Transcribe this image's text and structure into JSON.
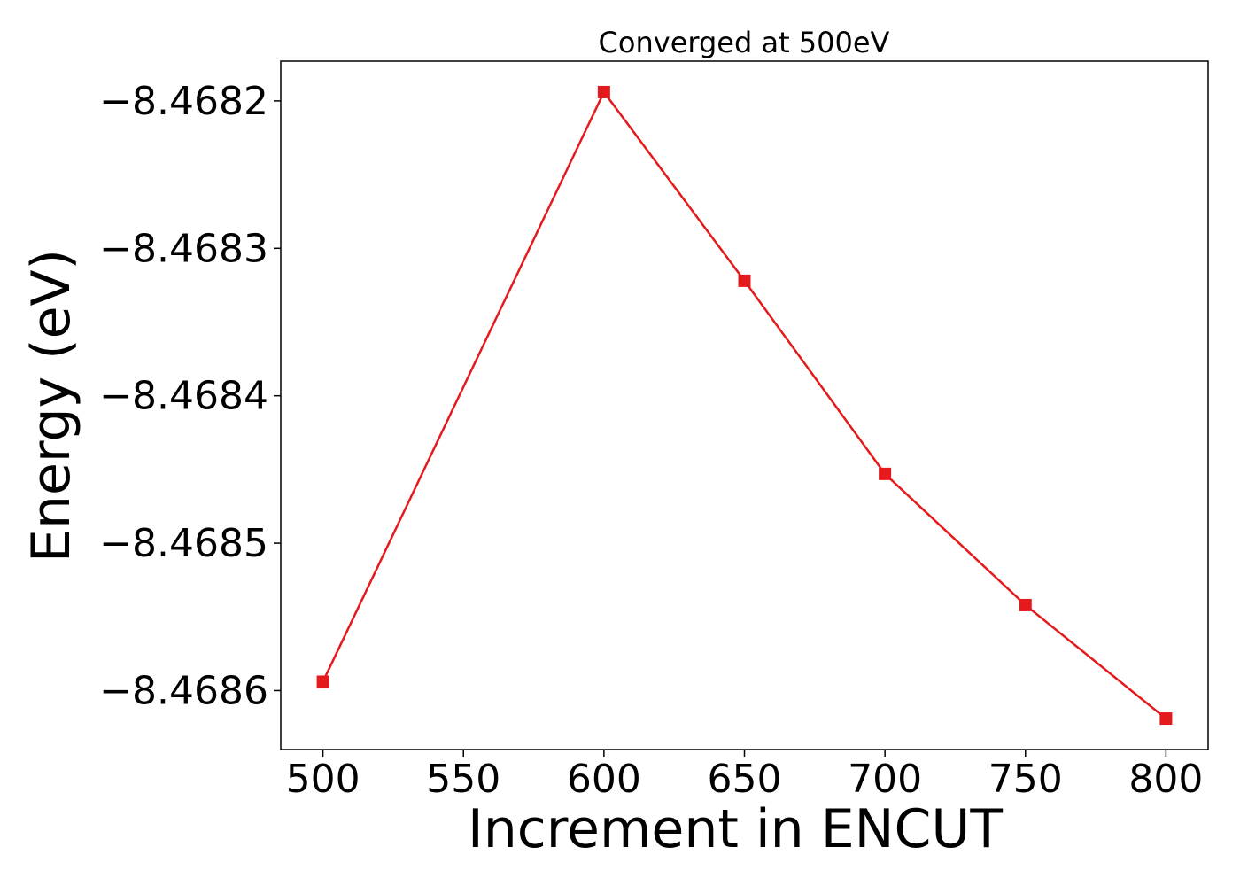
{
  "chart_data": {
    "type": "line",
    "title": "Converged at 500eV",
    "xlabel": "Increment in ENCUT",
    "ylabel": "Energy (eV)",
    "x": [
      500,
      600,
      650,
      700,
      750,
      800
    ],
    "series": [
      {
        "values": [
          -8.468594,
          -8.468194,
          -8.468322,
          -8.468453,
          -8.468542,
          -8.468619
        ],
        "color": "#e41a1c",
        "marker": "square"
      }
    ],
    "xticks": [
      500,
      550,
      600,
      650,
      700,
      750,
      800
    ],
    "xtick_labels": [
      "500",
      "550",
      "600",
      "650",
      "700",
      "750",
      "800"
    ],
    "yticks": [
      -8.4682,
      -8.4683,
      -8.4684,
      -8.4685,
      -8.4686
    ],
    "ytick_labels": [
      "−8.4682",
      "−8.4683",
      "−8.4684",
      "−8.4685",
      "−8.4686"
    ],
    "xlim": [
      485,
      815
    ],
    "ylim": [
      -8.46864,
      -8.468173
    ],
    "grid": false,
    "legend": "none"
  }
}
